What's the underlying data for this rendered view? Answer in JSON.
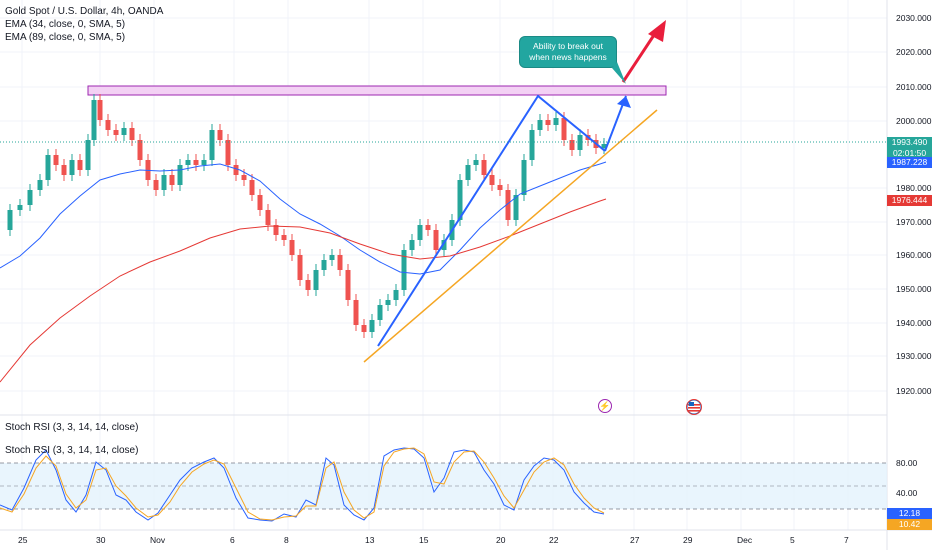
{
  "header": {
    "symbol": "Gold Spot / U.S. Dollar, 4h, OANDA",
    "ema1": "EMA (34, close, 0, SMA, 5)",
    "ema2": "EMA (89, close, 0, SMA, 5)"
  },
  "stoch_pane": {
    "title_1": "Stoch RSI (3, 3, 14, 14, close)",
    "title_2": "Stoch RSI (3, 3, 14, 14, close)",
    "levels": [
      "80.00",
      "40.00"
    ],
    "value_k": "12.18",
    "value_d": "10.42"
  },
  "price_axis": [
    "2030.000",
    "2020.000",
    "2010.000",
    "2000.000",
    "1980.000",
    "1970.000",
    "1960.000",
    "1950.000",
    "1940.000",
    "1930.000",
    "1920.000"
  ],
  "time_axis": [
    "25",
    "30",
    "Nov",
    "6",
    "8",
    "13",
    "15",
    "20",
    "22",
    "27",
    "29",
    "Dec",
    "5",
    "7"
  ],
  "price_tags": {
    "last_price": "1993.490",
    "countdown": "02:01:50",
    "ema34": "1987.228",
    "ema89": "1976.444"
  },
  "annotation": {
    "line1": "Ability to break out",
    "line2": "when news happens"
  },
  "colors": {
    "up": "#26a69a",
    "down": "#ef5350",
    "ema34": "#2962ff",
    "ema89": "#e53935",
    "trendline": "#f5a623",
    "resistance_fill": "#f3d1f4",
    "resistance_border": "#9c27b0",
    "callout": "#22a6a0",
    "arrow_blue": "#2962ff",
    "arrow_red": "#e91e3c"
  },
  "icons": {
    "event_icon": "lightning-icon",
    "flag_icon": "us-flag-icon"
  }
}
